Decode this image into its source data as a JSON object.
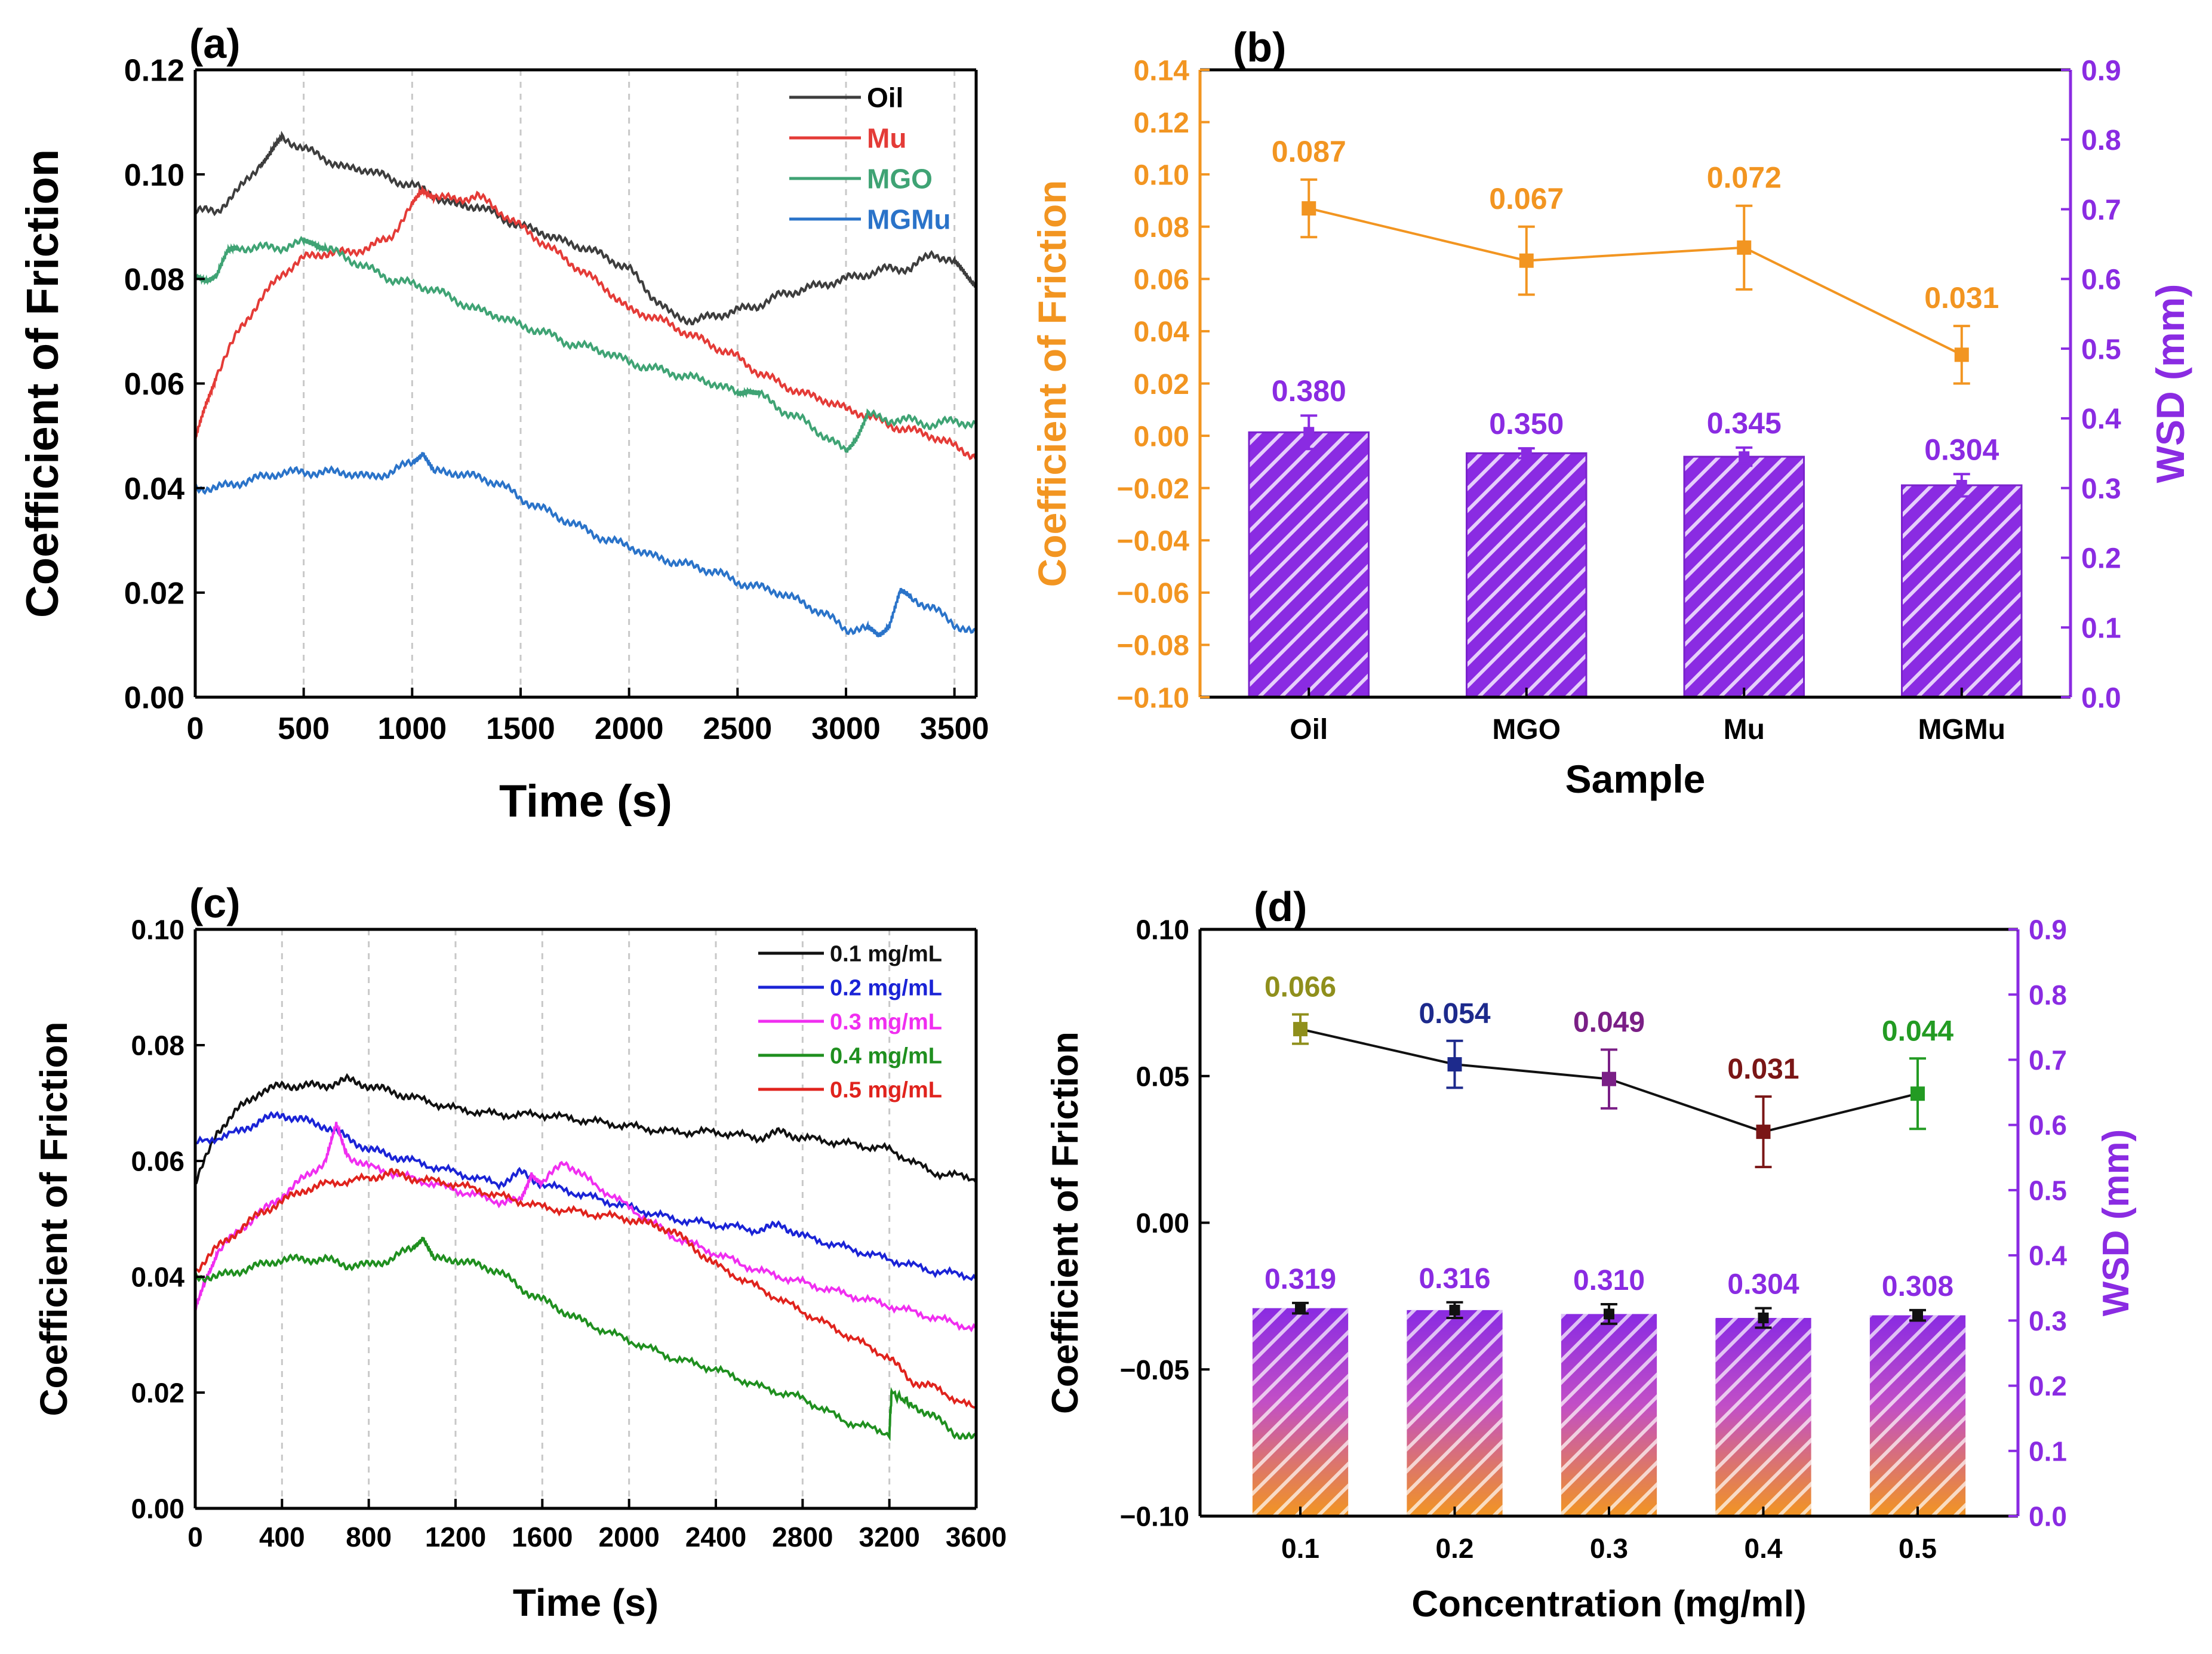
{
  "colors": {
    "oil": "#3d3d3d",
    "mu": "#e43b37",
    "mgo": "#3fa374",
    "mgmu": "#2a73c9",
    "orange": "#f29521",
    "purple": "#8a2be2",
    "c01": "#111111",
    "c02": "#1a23d6",
    "c03": "#f02ef0",
    "c04": "#1f8f1f",
    "c05": "#e0231d",
    "d01": "#8f8f1c",
    "d02": "#1d2a8c",
    "d03": "#7a1f86",
    "d04": "#7a1616",
    "d05": "#239b23"
  },
  "chart_data": [
    {
      "panel_label": "(a)",
      "type": "line",
      "title": "",
      "xlabel": "Time (s)",
      "ylabel": "Coefficient of Friction",
      "xlim": [
        0,
        3600
      ],
      "ylim": [
        0,
        0.12
      ],
      "xticks": [
        "0",
        "500",
        "1000",
        "1500",
        "2000",
        "2500",
        "3000",
        "3500"
      ],
      "yticks": [
        "0.00",
        "0.02",
        "0.04",
        "0.06",
        "0.08",
        "0.10",
        "0.12"
      ],
      "legend_position": "top-right",
      "series": [
        {
          "name": "Oil",
          "color_key": "oil",
          "x": [
            0,
            100,
            200,
            300,
            350,
            400,
            500,
            600,
            700,
            800,
            900,
            1000,
            1100,
            1200,
            1300,
            1400,
            1500,
            1600,
            1700,
            1800,
            1900,
            2000,
            2100,
            2200,
            2300,
            2400,
            2500,
            2600,
            2700,
            2800,
            2900,
            3000,
            3100,
            3200,
            3300,
            3400,
            3500,
            3550,
            3600
          ],
          "y": [
            0.093,
            0.093,
            0.097,
            0.102,
            0.104,
            0.107,
            0.105,
            0.103,
            0.101,
            0.101,
            0.099,
            0.098,
            0.096,
            0.094,
            0.094,
            0.092,
            0.09,
            0.089,
            0.087,
            0.086,
            0.084,
            0.082,
            0.077,
            0.073,
            0.072,
            0.073,
            0.074,
            0.075,
            0.077,
            0.078,
            0.079,
            0.08,
            0.081,
            0.082,
            0.082,
            0.085,
            0.083,
            0.081,
            0.079
          ]
        },
        {
          "name": "Mu",
          "color_key": "mu",
          "x": [
            0,
            50,
            100,
            200,
            300,
            400,
            500,
            600,
            700,
            800,
            900,
            1000,
            1050,
            1100,
            1200,
            1300,
            1400,
            1500,
            1600,
            1700,
            1800,
            1900,
            2000,
            2100,
            2200,
            2300,
            2400,
            2500,
            2600,
            2700,
            2800,
            2900,
            3000,
            3100,
            3200,
            3300,
            3400,
            3500,
            3600
          ],
          "y": [
            0.049,
            0.056,
            0.062,
            0.07,
            0.076,
            0.081,
            0.084,
            0.085,
            0.085,
            0.086,
            0.088,
            0.094,
            0.097,
            0.096,
            0.095,
            0.096,
            0.093,
            0.09,
            0.087,
            0.084,
            0.081,
            0.078,
            0.074,
            0.073,
            0.071,
            0.069,
            0.067,
            0.065,
            0.062,
            0.06,
            0.058,
            0.057,
            0.055,
            0.054,
            0.052,
            0.051,
            0.05,
            0.048,
            0.046
          ]
        },
        {
          "name": "MGO",
          "color_key": "mgo",
          "x": [
            0,
            50,
            100,
            150,
            200,
            300,
            400,
            500,
            550,
            600,
            700,
            800,
            900,
            1000,
            1100,
            1200,
            1300,
            1400,
            1500,
            1600,
            1700,
            1800,
            1900,
            2000,
            2100,
            2200,
            2300,
            2400,
            2500,
            2550,
            2600,
            2700,
            2800,
            2900,
            3000,
            3050,
            3100,
            3200,
            3300,
            3400,
            3500,
            3600
          ],
          "y": [
            0.08,
            0.08,
            0.081,
            0.085,
            0.086,
            0.086,
            0.086,
            0.087,
            0.087,
            0.086,
            0.084,
            0.082,
            0.08,
            0.079,
            0.078,
            0.076,
            0.074,
            0.073,
            0.071,
            0.07,
            0.068,
            0.067,
            0.066,
            0.064,
            0.063,
            0.062,
            0.061,
            0.06,
            0.058,
            0.059,
            0.058,
            0.055,
            0.053,
            0.05,
            0.047,
            0.05,
            0.054,
            0.053,
            0.053,
            0.052,
            0.053,
            0.052
          ]
        },
        {
          "name": "MGMu",
          "color_key": "mgmu",
          "x": [
            0,
            100,
            200,
            300,
            400,
            500,
            600,
            700,
            800,
            900,
            1000,
            1050,
            1100,
            1200,
            1300,
            1400,
            1500,
            1600,
            1700,
            1800,
            1900,
            2000,
            2100,
            2200,
            2300,
            2400,
            2500,
            2600,
            2700,
            2800,
            2900,
            3000,
            3100,
            3150,
            3200,
            3250,
            3300,
            3400,
            3500,
            3600
          ],
          "y": [
            0.04,
            0.04,
            0.041,
            0.042,
            0.043,
            0.043,
            0.043,
            0.043,
            0.042,
            0.043,
            0.045,
            0.047,
            0.043,
            0.043,
            0.042,
            0.041,
            0.038,
            0.036,
            0.034,
            0.032,
            0.03,
            0.029,
            0.027,
            0.026,
            0.025,
            0.024,
            0.022,
            0.021,
            0.02,
            0.018,
            0.016,
            0.013,
            0.013,
            0.012,
            0.014,
            0.02,
            0.019,
            0.017,
            0.014,
            0.012
          ]
        }
      ]
    },
    {
      "panel_label": "(b)",
      "type": "bar+line",
      "title": "",
      "xlabel": "Sample",
      "ylabel_left": "Coefficient of Friction",
      "ylabel_right": "WSD (mm)",
      "categories": [
        "Oil",
        "MGO",
        "Mu",
        "MGMu"
      ],
      "ylim_left": [
        -0.1,
        0.14
      ],
      "ylim_right": [
        0,
        0.9
      ],
      "yticks_left": [
        "−0.10",
        "−0.08",
        "−0.06",
        "−0.04",
        "−0.02",
        "0.00",
        "0.02",
        "0.04",
        "0.06",
        "0.08",
        "0.10",
        "0.12",
        "0.14"
      ],
      "yticks_right": [
        "0.0",
        "0.1",
        "0.2",
        "0.3",
        "0.4",
        "0.5",
        "0.6",
        "0.7",
        "0.8",
        "0.9"
      ],
      "cof": {
        "values": [
          0.087,
          0.067,
          0.072,
          0.031
        ],
        "errors": [
          0.011,
          0.013,
          0.016,
          0.011
        ],
        "labels": [
          "0.087",
          "0.067",
          "0.072",
          "0.031"
        ]
      },
      "wsd": {
        "values": [
          0.38,
          0.35,
          0.345,
          0.304
        ],
        "errors": [
          0.024,
          0.007,
          0.013,
          0.016
        ],
        "labels": [
          "0.380",
          "0.350",
          "0.345",
          "0.304"
        ]
      }
    },
    {
      "panel_label": "(c)",
      "type": "line",
      "title": "",
      "xlabel": "Time (s)",
      "ylabel": "Coefficient of Friction",
      "xlim": [
        0,
        3600
      ],
      "ylim": [
        0,
        0.1
      ],
      "xticks": [
        "0",
        "400",
        "800",
        "1200",
        "1600",
        "2000",
        "2400",
        "2800",
        "3200",
        "3600"
      ],
      "yticks": [
        "0.00",
        "0.02",
        "0.04",
        "0.06",
        "0.08",
        "0.10"
      ],
      "legend_position": "top-right",
      "series": [
        {
          "name": "0.1 mg/mL",
          "color_key": "c01",
          "x": [
            0,
            100,
            200,
            300,
            400,
            500,
            600,
            700,
            800,
            900,
            1000,
            1200,
            1400,
            1600,
            1800,
            2000,
            2200,
            2400,
            2600,
            2700,
            2800,
            3000,
            3200,
            3400,
            3600
          ],
          "y": [
            0.056,
            0.065,
            0.069,
            0.072,
            0.073,
            0.073,
            0.073,
            0.074,
            0.073,
            0.072,
            0.071,
            0.069,
            0.068,
            0.068,
            0.067,
            0.066,
            0.065,
            0.065,
            0.064,
            0.065,
            0.064,
            0.063,
            0.062,
            0.058,
            0.057
          ]
        },
        {
          "name": "0.2 mg/mL",
          "color_key": "c02",
          "x": [
            0,
            200,
            300,
            400,
            500,
            600,
            700,
            800,
            900,
            1000,
            1200,
            1400,
            1500,
            1600,
            1800,
            2000,
            2200,
            2400,
            2600,
            2700,
            2800,
            3000,
            3200,
            3400,
            3600
          ],
          "y": [
            0.063,
            0.065,
            0.067,
            0.068,
            0.067,
            0.066,
            0.064,
            0.062,
            0.061,
            0.06,
            0.058,
            0.056,
            0.058,
            0.056,
            0.054,
            0.052,
            0.05,
            0.049,
            0.048,
            0.049,
            0.047,
            0.045,
            0.043,
            0.041,
            0.04
          ]
        },
        {
          "name": "0.3 mg/mL",
          "color_key": "c03",
          "x": [
            0,
            50,
            100,
            200,
            300,
            400,
            500,
            600,
            650,
            700,
            800,
            1000,
            1200,
            1400,
            1500,
            1550,
            1600,
            1700,
            1800,
            2000,
            2200,
            2400,
            2600,
            2800,
            3000,
            3200,
            3400,
            3600
          ],
          "y": [
            0.034,
            0.04,
            0.044,
            0.048,
            0.051,
            0.054,
            0.057,
            0.06,
            0.066,
            0.061,
            0.059,
            0.057,
            0.055,
            0.053,
            0.053,
            0.058,
            0.056,
            0.06,
            0.057,
            0.052,
            0.047,
            0.044,
            0.041,
            0.039,
            0.037,
            0.035,
            0.033,
            0.031
          ]
        },
        {
          "name": "0.4 mg/mL",
          "color_key": "c04",
          "x": [
            0,
            100,
            200,
            300,
            400,
            500,
            600,
            700,
            800,
            900,
            1000,
            1050,
            1100,
            1200,
            1300,
            1400,
            1500,
            1600,
            1700,
            1800,
            2000,
            2200,
            2400,
            2600,
            2800,
            3000,
            3200,
            3210,
            3300,
            3400,
            3500,
            3600
          ],
          "y": [
            0.04,
            0.04,
            0.041,
            0.042,
            0.043,
            0.043,
            0.043,
            0.042,
            0.042,
            0.043,
            0.045,
            0.047,
            0.043,
            0.043,
            0.042,
            0.041,
            0.038,
            0.036,
            0.034,
            0.032,
            0.029,
            0.026,
            0.024,
            0.021,
            0.019,
            0.015,
            0.013,
            0.02,
            0.018,
            0.016,
            0.013,
            0.012
          ]
        },
        {
          "name": "0.5 mg/mL",
          "color_key": "c05",
          "x": [
            0,
            100,
            200,
            300,
            400,
            500,
            600,
            800,
            900,
            1000,
            1200,
            1400,
            1600,
            1800,
            2000,
            2100,
            2200,
            2300,
            2400,
            2600,
            2800,
            3000,
            3200,
            3300,
            3400,
            3600
          ],
          "y": [
            0.041,
            0.045,
            0.048,
            0.051,
            0.053,
            0.055,
            0.056,
            0.057,
            0.058,
            0.057,
            0.056,
            0.054,
            0.052,
            0.051,
            0.05,
            0.049,
            0.048,
            0.045,
            0.042,
            0.038,
            0.034,
            0.03,
            0.026,
            0.022,
            0.021,
            0.017
          ]
        }
      ]
    },
    {
      "panel_label": "(d)",
      "type": "bar+line",
      "title": "",
      "xlabel": "Concentration (mg/ml)",
      "ylabel_left": "Coefficient of Friction",
      "ylabel_right": "WSD (mm)",
      "categories": [
        "0.1",
        "0.2",
        "0.3",
        "0.4",
        "0.5"
      ],
      "ylim_left": [
        -0.1,
        0.1
      ],
      "ylim_right": [
        0,
        0.9
      ],
      "yticks_left": [
        "−0.10",
        "−0.05",
        "0.00",
        "0.05",
        "0.10"
      ],
      "yticks_right": [
        "0.0",
        "0.1",
        "0.2",
        "0.3",
        "0.4",
        "0.5",
        "0.6",
        "0.7",
        "0.8",
        "0.9"
      ],
      "cof": {
        "values": [
          0.066,
          0.054,
          0.049,
          0.031,
          0.044
        ],
        "errors": [
          0.005,
          0.008,
          0.01,
          0.012,
          0.012
        ],
        "labels": [
          "0.066",
          "0.054",
          "0.049",
          "0.031",
          "0.044"
        ],
        "color_keys": [
          "d01",
          "d02",
          "d03",
          "d04",
          "d05"
        ]
      },
      "wsd": {
        "values": [
          0.319,
          0.316,
          0.31,
          0.304,
          0.308
        ],
        "errors": [
          0.008,
          0.012,
          0.015,
          0.015,
          0.008
        ],
        "labels": [
          "0.319",
          "0.316",
          "0.310",
          "0.304",
          "0.308"
        ]
      }
    }
  ]
}
